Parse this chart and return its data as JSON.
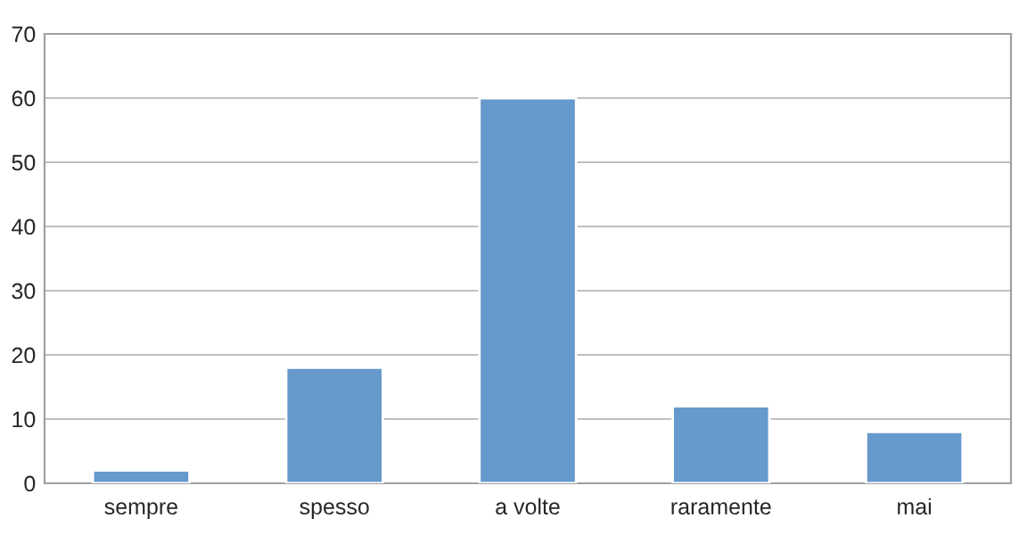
{
  "chart_data": {
    "type": "bar",
    "categories": [
      "sempre",
      "spesso",
      "a volte",
      "raramente",
      "mai"
    ],
    "values": [
      2,
      18,
      60,
      12,
      8
    ],
    "color": "#6699cc",
    "ylim": [
      0,
      70
    ],
    "yticks": [
      0,
      10,
      20,
      30,
      40,
      50,
      60,
      70
    ],
    "grid": "y",
    "legend": false
  }
}
